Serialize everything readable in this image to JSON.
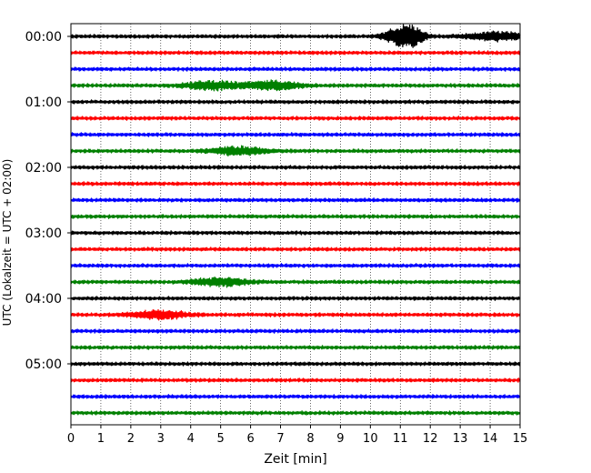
{
  "chart_data": {
    "type": "line",
    "xlabel": "Zeit  [min]",
    "ylabel": "UTC (Lokalzeit = UTC + 02:00)",
    "xlim": [
      0,
      15
    ],
    "xticks": [
      0,
      1,
      2,
      3,
      4,
      5,
      6,
      7,
      8,
      9,
      10,
      11,
      12,
      13,
      14,
      15
    ],
    "grid": "vertical dotted at each minute",
    "trace_interval_min": 15,
    "trace_colors": [
      "#000000",
      "#ff0000",
      "#0000ff",
      "#008000"
    ],
    "ytick_labels": [
      "00:00",
      "01:00",
      "02:00",
      "03:00",
      "04:00",
      "05:00"
    ],
    "traces": [
      {
        "start": "00:00",
        "color": "#000000",
        "events": [
          {
            "t_min": 11.3,
            "amplitude": "large"
          },
          {
            "t_min": 10.7,
            "amplitude": "medium"
          },
          {
            "t_min": 14.2,
            "amplitude": "small"
          }
        ]
      },
      {
        "start": "00:15",
        "color": "#ff0000",
        "events": []
      },
      {
        "start": "00:30",
        "color": "#0000ff",
        "events": []
      },
      {
        "start": "00:45",
        "color": "#008000",
        "events": [
          {
            "t_min": 4.7,
            "amplitude": "small"
          },
          {
            "t_min": 6.7,
            "amplitude": "small"
          }
        ]
      },
      {
        "start": "01:00",
        "color": "#000000",
        "events": []
      },
      {
        "start": "01:15",
        "color": "#ff0000",
        "events": []
      },
      {
        "start": "01:30",
        "color": "#0000ff",
        "events": []
      },
      {
        "start": "01:45",
        "color": "#008000",
        "events": [
          {
            "t_min": 5.6,
            "amplitude": "small"
          }
        ]
      },
      {
        "start": "02:00",
        "color": "#000000",
        "events": []
      },
      {
        "start": "02:15",
        "color": "#ff0000",
        "events": []
      },
      {
        "start": "02:30",
        "color": "#0000ff",
        "events": []
      },
      {
        "start": "02:45",
        "color": "#008000",
        "events": []
      },
      {
        "start": "03:00",
        "color": "#000000",
        "events": []
      },
      {
        "start": "03:15",
        "color": "#ff0000",
        "events": []
      },
      {
        "start": "03:30",
        "color": "#0000ff",
        "events": []
      },
      {
        "start": "03:45",
        "color": "#008000",
        "events": [
          {
            "t_min": 5.0,
            "amplitude": "small"
          }
        ]
      },
      {
        "start": "04:00",
        "color": "#000000",
        "events": []
      },
      {
        "start": "04:15",
        "color": "#ff0000",
        "events": [
          {
            "t_min": 3.0,
            "amplitude": "small"
          }
        ]
      },
      {
        "start": "04:30",
        "color": "#0000ff",
        "events": []
      },
      {
        "start": "04:45",
        "color": "#008000",
        "events": []
      },
      {
        "start": "05:00",
        "color": "#000000",
        "events": []
      },
      {
        "start": "05:15",
        "color": "#ff0000",
        "events": []
      },
      {
        "start": "05:30",
        "color": "#0000ff",
        "events": []
      },
      {
        "start": "05:45",
        "color": "#008000",
        "events": []
      }
    ]
  }
}
